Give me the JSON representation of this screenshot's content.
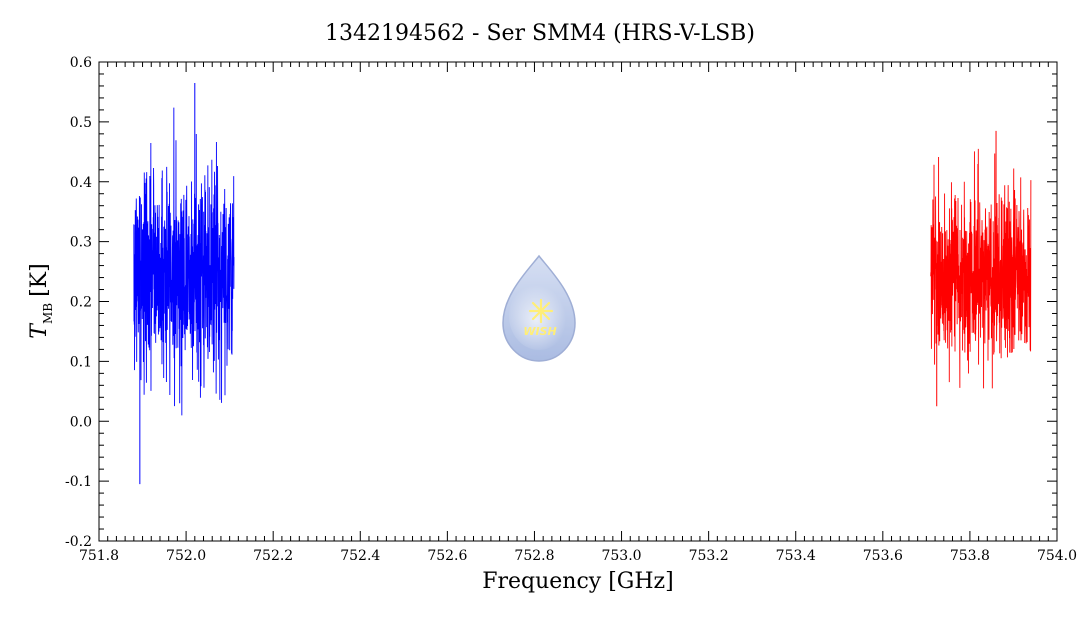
{
  "chart_data": {
    "type": "line",
    "title": "1342194562 - Ser SMM4 (HRS-V-LSB)",
    "xlabel": "Frequency [GHz]",
    "ylabel_main": "T",
    "ylabel_sub": "MB",
    "ylabel_unit": "[K]",
    "xlim": [
      751.8,
      754.0
    ],
    "ylim": [
      -0.2,
      0.6
    ],
    "x_ticks": [
      "751.8",
      "752.0",
      "752.2",
      "752.4",
      "752.6",
      "752.8",
      "753.0",
      "753.2",
      "753.4",
      "753.6",
      "753.8",
      "754.0"
    ],
    "y_ticks": [
      "-0.2",
      "-0.1",
      "0.0",
      "0.1",
      "0.2",
      "0.3",
      "0.4",
      "0.5",
      "0.6"
    ],
    "grid": false,
    "series": [
      {
        "color": "#0000ff",
        "x_range": [
          751.88,
          752.11
        ],
        "baseline": 0.25,
        "noise_sigma": 0.085,
        "min": -0.105,
        "max": 0.565,
        "peak_x": 752.02
      },
      {
        "color": "#ff0000",
        "x_range": [
          753.71,
          753.94
        ],
        "baseline": 0.245,
        "noise_sigma": 0.07,
        "min": 0.025,
        "max": 0.485,
        "peak_x": 753.86
      }
    ],
    "watermark_text": "WISH"
  }
}
